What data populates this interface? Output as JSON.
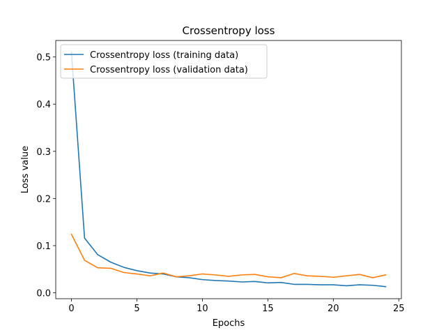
{
  "chart_data": {
    "type": "line",
    "title": "Crossentropy loss",
    "xlabel": "Epochs",
    "ylabel": "Loss value",
    "xlim": [
      -1.2,
      25.2
    ],
    "ylim": [
      -0.0125,
      0.535
    ],
    "xticks": [
      0,
      5,
      10,
      15,
      20,
      25
    ],
    "yticks": [
      0.0,
      0.1,
      0.2,
      0.3,
      0.4,
      0.5
    ],
    "ytick_labels": [
      "0.0",
      "0.1",
      "0.2",
      "0.3",
      "0.4",
      "0.5"
    ],
    "grid": false,
    "legend_position": "top-left",
    "x": [
      0,
      1,
      2,
      3,
      4,
      5,
      6,
      7,
      8,
      9,
      10,
      11,
      12,
      13,
      14,
      15,
      16,
      17,
      18,
      19,
      20,
      21,
      22,
      23,
      24
    ],
    "series": [
      {
        "name": "Crossentropy loss (training data)",
        "color": "#1f77b4",
        "values": [
          0.51,
          0.116,
          0.081,
          0.065,
          0.054,
          0.047,
          0.042,
          0.04,
          0.034,
          0.032,
          0.028,
          0.026,
          0.025,
          0.023,
          0.024,
          0.021,
          0.022,
          0.018,
          0.018,
          0.017,
          0.017,
          0.015,
          0.017,
          0.016,
          0.013
        ]
      },
      {
        "name": "Crossentropy loss (validation data)",
        "color": "#ff7f0e",
        "values": [
          0.124,
          0.069,
          0.053,
          0.052,
          0.043,
          0.04,
          0.036,
          0.042,
          0.034,
          0.036,
          0.04,
          0.038,
          0.035,
          0.038,
          0.039,
          0.034,
          0.032,
          0.041,
          0.036,
          0.035,
          0.033,
          0.036,
          0.039,
          0.032,
          0.038
        ]
      }
    ]
  }
}
